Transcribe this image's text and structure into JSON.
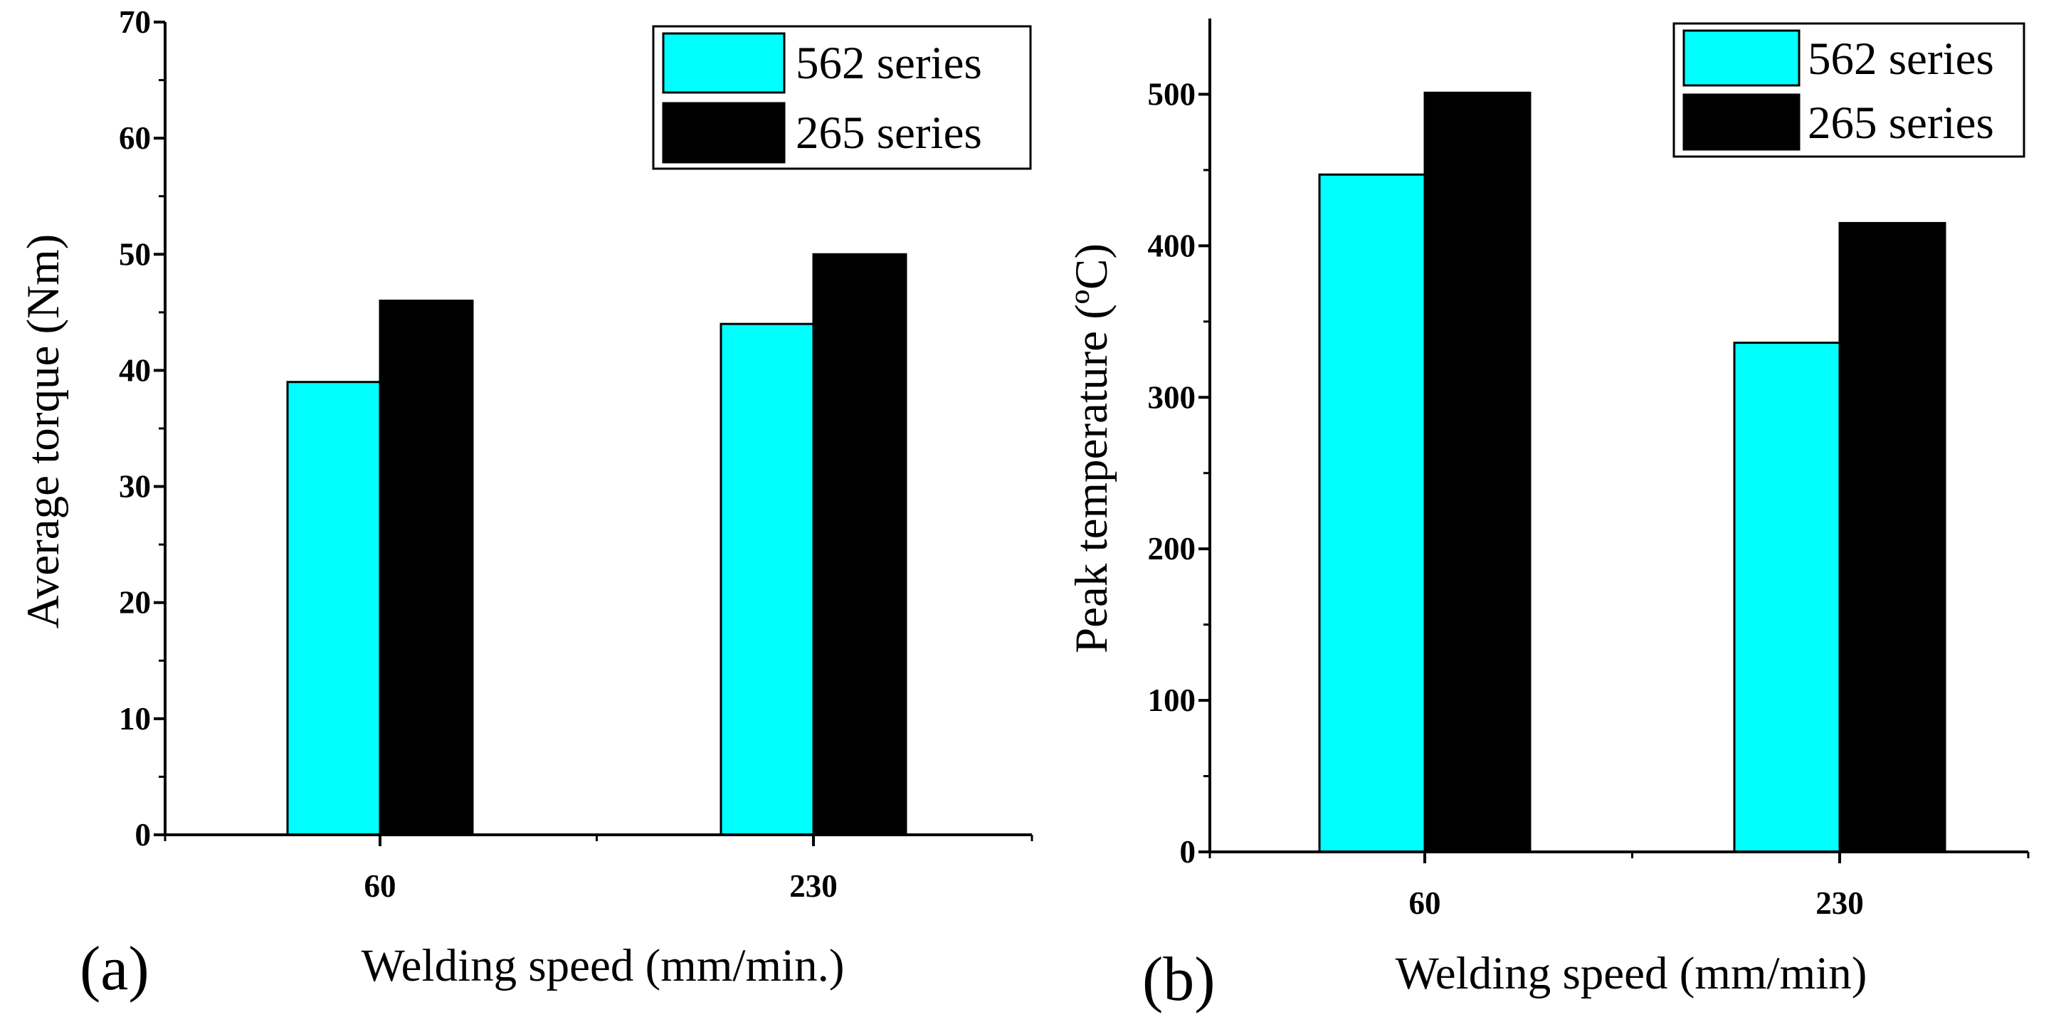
{
  "colors": {
    "series_562": "#00FFFF",
    "series_265": "#000000",
    "axis": "#000000"
  },
  "chart_data": [
    {
      "type": "bar",
      "panel_label": "(a)",
      "categories": [
        "60",
        "230"
      ],
      "series": [
        {
          "name": "562 series",
          "values": [
            39,
            44
          ]
        },
        {
          "name": "265 series",
          "values": [
            46,
            50
          ]
        }
      ],
      "xlabel": "Welding speed (mm/min.)",
      "ylabel": "Average torque (Nm)",
      "ylim": [
        0,
        70
      ],
      "yticks": [
        "0",
        "10",
        "20",
        "30",
        "40",
        "50",
        "60",
        "70"
      ],
      "grid": false,
      "legend": "top-right"
    },
    {
      "type": "bar",
      "panel_label": "(b)",
      "categories": [
        "60",
        "230"
      ],
      "series": [
        {
          "name": "562 series",
          "values": [
            447,
            336
          ]
        },
        {
          "name": "265 series",
          "values": [
            501,
            415
          ]
        }
      ],
      "xlabel": "Welding speed (mm/min)",
      "ylabel": "Peak temperature (ºC)",
      "ylim": [
        0,
        550
      ],
      "yticks": [
        "0",
        "100",
        "200",
        "300",
        "400",
        "500"
      ],
      "grid": false,
      "legend": "top-right"
    }
  ]
}
